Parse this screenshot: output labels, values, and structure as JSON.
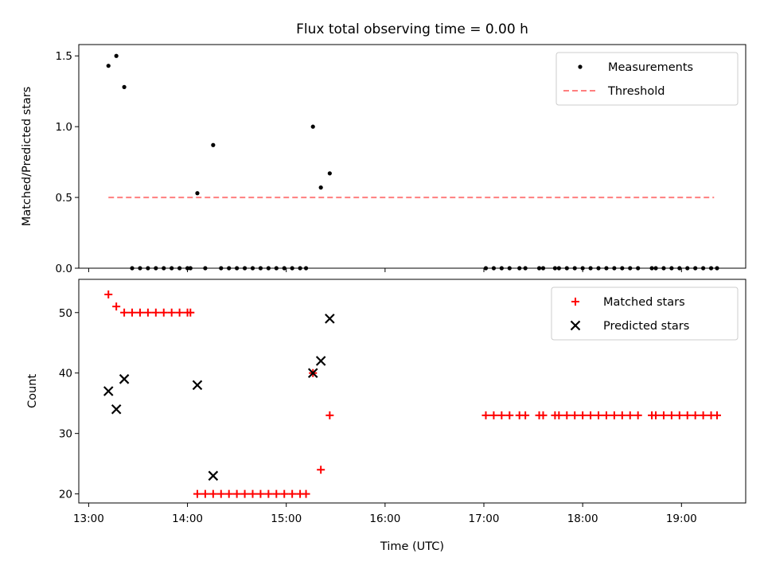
{
  "title": "Flux total observing time = 0.00 h",
  "colors": {
    "measurement": "#000000",
    "threshold": "#ff7f7f",
    "matched": "#ff0000",
    "predicted": "#000000"
  },
  "chart_data": [
    {
      "type": "scatter",
      "ylabel": "Matched/Predicted stars",
      "xlim": [
        12.9,
        19.65
      ],
      "ylim": [
        0,
        1.58
      ],
      "yticks": [
        0.0,
        0.5,
        1.0,
        1.5
      ],
      "ytick_labels": [
        "0.0",
        "0.5",
        "1.0",
        "1.5"
      ],
      "xtick_labels_shown": false,
      "legend": {
        "placement": "upper right",
        "entries": [
          "Measurements",
          "Threshold"
        ]
      },
      "series": [
        {
          "name": "Measurements",
          "marker": "dot",
          "points": [
            [
              13.2,
              1.43
            ],
            [
              13.28,
              1.5
            ],
            [
              13.36,
              1.28
            ],
            [
              13.44,
              0
            ],
            [
              13.52,
              0
            ],
            [
              13.6,
              0
            ],
            [
              13.68,
              0
            ],
            [
              13.76,
              0
            ],
            [
              13.84,
              0
            ],
            [
              13.92,
              0
            ],
            [
              14.0,
              0
            ],
            [
              14.03,
              0
            ],
            [
              14.1,
              0.53
            ],
            [
              14.18,
              0
            ],
            [
              14.26,
              0.87
            ],
            [
              14.34,
              0
            ],
            [
              14.42,
              0
            ],
            [
              14.5,
              0
            ],
            [
              14.58,
              0
            ],
            [
              14.66,
              0
            ],
            [
              14.74,
              0
            ],
            [
              14.82,
              0
            ],
            [
              14.9,
              0
            ],
            [
              14.98,
              0
            ],
            [
              15.06,
              0
            ],
            [
              15.14,
              0
            ],
            [
              15.2,
              0
            ],
            [
              15.27,
              1.0
            ],
            [
              15.35,
              0.57
            ],
            [
              15.44,
              0.67
            ],
            [
              17.02,
              0
            ],
            [
              17.1,
              0
            ],
            [
              17.18,
              0
            ],
            [
              17.26,
              0
            ],
            [
              17.36,
              0
            ],
            [
              17.42,
              0
            ],
            [
              17.56,
              0
            ],
            [
              17.6,
              0
            ],
            [
              17.72,
              0
            ],
            [
              17.76,
              0
            ],
            [
              17.84,
              0
            ],
            [
              17.92,
              0
            ],
            [
              18.0,
              0
            ],
            [
              18.08,
              0
            ],
            [
              18.16,
              0
            ],
            [
              18.24,
              0
            ],
            [
              18.32,
              0
            ],
            [
              18.4,
              0
            ],
            [
              18.48,
              0
            ],
            [
              18.56,
              0
            ],
            [
              18.7,
              0
            ],
            [
              18.74,
              0
            ],
            [
              18.82,
              0
            ],
            [
              18.9,
              0
            ],
            [
              18.98,
              0
            ],
            [
              19.06,
              0
            ],
            [
              19.14,
              0
            ],
            [
              19.22,
              0
            ],
            [
              19.3,
              0
            ],
            [
              19.36,
              0
            ]
          ]
        },
        {
          "name": "Threshold",
          "style": "dashed",
          "points": [
            [
              13.2,
              0.5
            ],
            [
              19.33,
              0.5
            ]
          ]
        }
      ]
    },
    {
      "type": "scatter",
      "xlabel": "Time (UTC)",
      "ylabel": "Count",
      "xlim": [
        12.9,
        19.65
      ],
      "ylim": [
        18.5,
        55.5
      ],
      "xticks": [
        13,
        14,
        15,
        16,
        17,
        18,
        19
      ],
      "xtick_labels": [
        "13:00",
        "14:00",
        "15:00",
        "16:00",
        "17:00",
        "18:00",
        "19:00"
      ],
      "yticks": [
        20,
        30,
        40,
        50
      ],
      "ytick_labels": [
        "20",
        "30",
        "40",
        "50"
      ],
      "legend": {
        "placement": "upper right",
        "entries": [
          "Matched stars",
          "Predicted stars"
        ]
      },
      "series": [
        {
          "name": "Matched stars",
          "marker": "plus",
          "points": [
            [
              13.2,
              53
            ],
            [
              13.28,
              51
            ],
            [
              13.36,
              50
            ],
            [
              13.44,
              50
            ],
            [
              13.52,
              50
            ],
            [
              13.6,
              50
            ],
            [
              13.68,
              50
            ],
            [
              13.76,
              50
            ],
            [
              13.84,
              50
            ],
            [
              13.92,
              50
            ],
            [
              14.0,
              50
            ],
            [
              14.03,
              50
            ],
            [
              14.1,
              20
            ],
            [
              14.18,
              20
            ],
            [
              14.26,
              20
            ],
            [
              14.34,
              20
            ],
            [
              14.42,
              20
            ],
            [
              14.5,
              20
            ],
            [
              14.58,
              20
            ],
            [
              14.66,
              20
            ],
            [
              14.74,
              20
            ],
            [
              14.82,
              20
            ],
            [
              14.9,
              20
            ],
            [
              14.98,
              20
            ],
            [
              15.06,
              20
            ],
            [
              15.14,
              20
            ],
            [
              15.2,
              20
            ],
            [
              15.27,
              40
            ],
            [
              15.35,
              24
            ],
            [
              15.44,
              33
            ],
            [
              17.02,
              33
            ],
            [
              17.1,
              33
            ],
            [
              17.18,
              33
            ],
            [
              17.26,
              33
            ],
            [
              17.36,
              33
            ],
            [
              17.42,
              33
            ],
            [
              17.56,
              33
            ],
            [
              17.6,
              33
            ],
            [
              17.72,
              33
            ],
            [
              17.76,
              33
            ],
            [
              17.84,
              33
            ],
            [
              17.92,
              33
            ],
            [
              18.0,
              33
            ],
            [
              18.08,
              33
            ],
            [
              18.16,
              33
            ],
            [
              18.24,
              33
            ],
            [
              18.32,
              33
            ],
            [
              18.4,
              33
            ],
            [
              18.48,
              33
            ],
            [
              18.56,
              33
            ],
            [
              18.7,
              33
            ],
            [
              18.74,
              33
            ],
            [
              18.82,
              33
            ],
            [
              18.9,
              33
            ],
            [
              18.98,
              33
            ],
            [
              19.06,
              33
            ],
            [
              19.14,
              33
            ],
            [
              19.22,
              33
            ],
            [
              19.3,
              33
            ],
            [
              19.36,
              33
            ]
          ]
        },
        {
          "name": "Predicted stars",
          "marker": "x",
          "points": [
            [
              13.2,
              37
            ],
            [
              13.28,
              34
            ],
            [
              13.36,
              39
            ],
            [
              14.1,
              38
            ],
            [
              14.26,
              23
            ],
            [
              15.27,
              40
            ],
            [
              15.35,
              42
            ],
            [
              15.44,
              49
            ]
          ]
        }
      ]
    }
  ]
}
